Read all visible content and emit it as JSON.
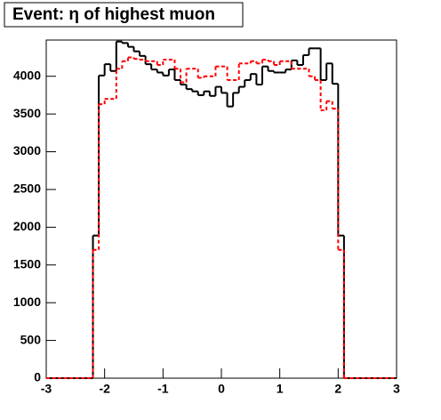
{
  "chart_data": {
    "type": "histogram",
    "title": "Event: η of highest muon",
    "bins": [
      -3,
      -2.9,
      -2.8,
      -2.7,
      -2.6,
      -2.5,
      -2.4,
      -2.3,
      -2.2,
      -2.1,
      -2,
      -1.9,
      -1.8,
      -1.7,
      -1.6,
      -1.5,
      -1.4,
      -1.3,
      -1.2,
      -1.1,
      -1,
      -0.9,
      -0.8,
      -0.7,
      -0.6,
      -0.5,
      -0.4,
      -0.3,
      -0.2,
      -0.1,
      0,
      0.1,
      0.2,
      0.3,
      0.4,
      0.5,
      0.6,
      0.7,
      0.8,
      0.9,
      1,
      1.1,
      1.2,
      1.3,
      1.4,
      1.5,
      1.6,
      1.7,
      1.8,
      1.9,
      2,
      2.1,
      2.2,
      2.3,
      2.4,
      2.5,
      2.6,
      2.7,
      2.8,
      2.9,
      3
    ],
    "series": [
      {
        "color": "#000000",
        "dashed": false,
        "values": [
          0,
          0,
          0,
          0,
          0,
          0,
          0,
          0,
          1890,
          4010,
          4160,
          4070,
          4460,
          4440,
          4390,
          4330,
          4270,
          4160,
          4090,
          4050,
          4010,
          4090,
          3950,
          3890,
          3830,
          3800,
          3750,
          3800,
          3740,
          3860,
          3780,
          3600,
          3780,
          3860,
          3950,
          4030,
          3890,
          4130,
          4070,
          4050,
          4050,
          4090,
          4210,
          4150,
          4280,
          4370,
          4370,
          3950,
          4170,
          3900,
          1890,
          0,
          0,
          0,
          0,
          0,
          0,
          0,
          0,
          0
        ]
      },
      {
        "color": "#ff0000",
        "dashed": true,
        "values": [
          0,
          0,
          0,
          0,
          0,
          0,
          0,
          0,
          1700,
          3630,
          3700,
          3700,
          4100,
          4200,
          4250,
          4230,
          4220,
          4200,
          4200,
          4150,
          4220,
          4220,
          4100,
          3920,
          4100,
          4100,
          3980,
          4000,
          4000,
          4130,
          4130,
          3950,
          3950,
          4170,
          4170,
          4200,
          4170,
          4220,
          4200,
          4150,
          4200,
          4200,
          4100,
          4100,
          4100,
          4000,
          3950,
          3550,
          3670,
          3570,
          1700,
          0,
          0,
          0,
          0,
          0,
          0,
          0,
          0,
          0
        ]
      }
    ],
    "xlim": [
      -3,
      3
    ],
    "xticks": [
      -3,
      -2,
      -1,
      0,
      1,
      2,
      3
    ],
    "ylim": [
      0,
      4480
    ],
    "yticks": [
      0,
      500,
      1000,
      1500,
      2000,
      2500,
      3000,
      3500,
      4000
    ]
  }
}
